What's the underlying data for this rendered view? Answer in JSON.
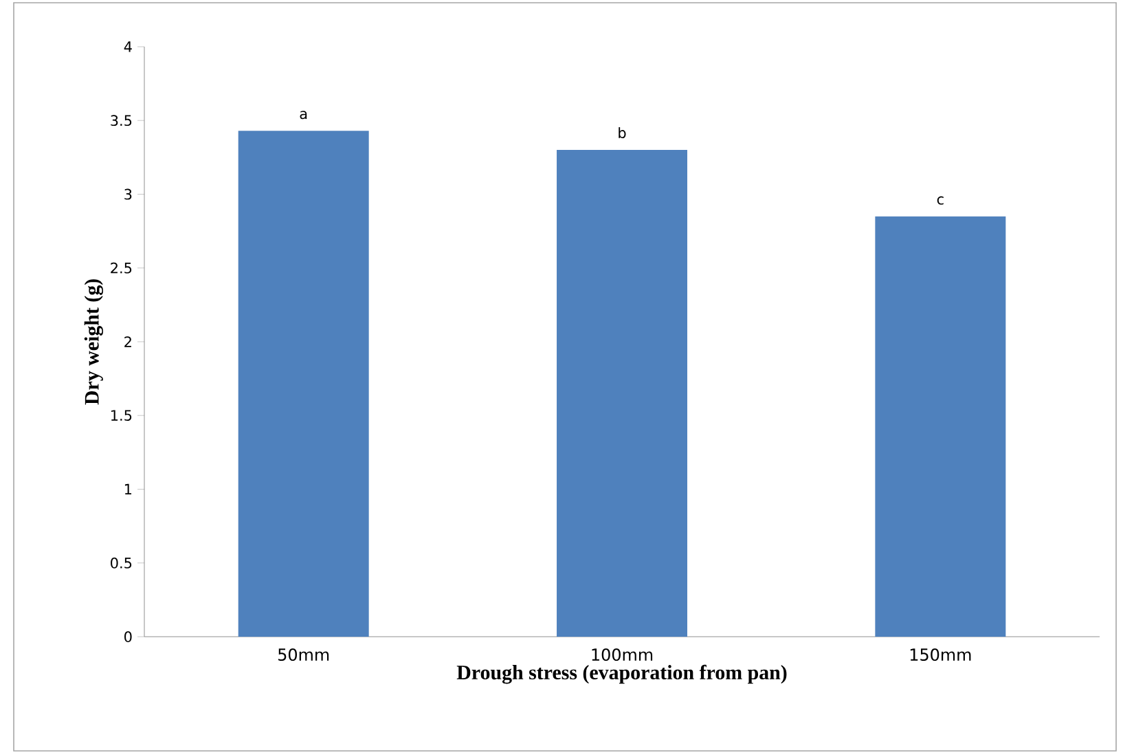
{
  "chart_data": {
    "type": "bar",
    "xlabel": "Drough stress (evaporation from pan)",
    "ylabel": "Dry weight  (g)",
    "categories": [
      "50mm",
      "100mm",
      "150mm"
    ],
    "values": [
      3.43,
      3.3,
      2.85
    ],
    "color": "#4f81bd",
    "ylim": [
      0,
      4
    ],
    "yticks": [
      0,
      0.5,
      1,
      1.5,
      2,
      2.5,
      3,
      3.5,
      4
    ],
    "grid": false,
    "annotations": [
      "a",
      "b",
      "c"
    ]
  }
}
